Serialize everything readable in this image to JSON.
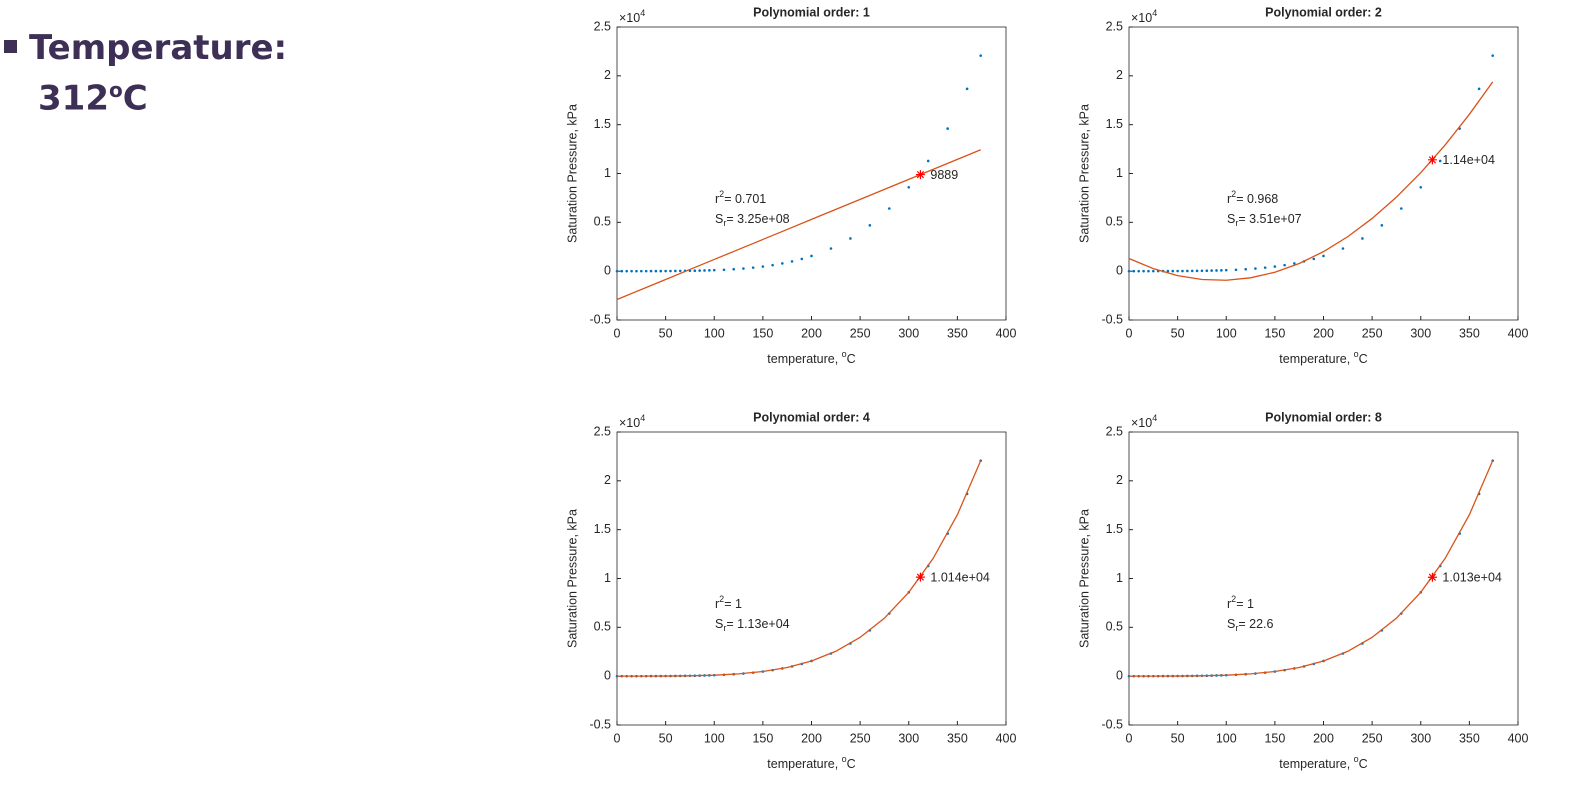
{
  "slide": {
    "heading": "Temperature:",
    "value": "312",
    "sup": "o",
    "unit": "C"
  },
  "chart_data": [
    {
      "type": "scatter",
      "title": "Polynomial order: 1",
      "xlabel": {
        "text": "temperature, ",
        "sup": "o",
        "unit": "C"
      },
      "ylabel": "Saturation Pressure, kPa",
      "y_scale": {
        "base": "×10",
        "exp": "4"
      },
      "xlim": [
        0,
        400
      ],
      "xticks": [
        0,
        50,
        100,
        150,
        200,
        250,
        300,
        350,
        400
      ],
      "ylim": [
        -5000,
        25000
      ],
      "yticks": [
        {
          "value": -5000,
          "label": "-0.5"
        },
        0,
        {
          "value": 5000,
          "label": "0.5"
        },
        {
          "value": 10000,
          "label": "1"
        },
        {
          "value": 15000,
          "label": "1.5"
        },
        {
          "value": 20000,
          "label": "2"
        },
        {
          "value": 25000,
          "label": "2.5"
        }
      ],
      "grid": false,
      "points": {
        "color": "#0072bd",
        "x": [
          0,
          5,
          10,
          15,
          20,
          25,
          30,
          35,
          40,
          45,
          50,
          55,
          60,
          65,
          70,
          75,
          80,
          85,
          90,
          95,
          100,
          110,
          120,
          130,
          140,
          150,
          160,
          170,
          180,
          190,
          200,
          220,
          240,
          260,
          280,
          300,
          320,
          340,
          360,
          374
        ],
        "values": [
          0.61,
          0.87,
          1.23,
          1.71,
          2.34,
          3.17,
          4.25,
          5.63,
          7.38,
          9.59,
          12.35,
          15.76,
          19.95,
          25.04,
          31.2,
          38.6,
          47.41,
          57.87,
          70.18,
          84.61,
          101.42,
          143.38,
          198.67,
          270.28,
          361.53,
          476.16,
          618.23,
          792.19,
          1002.8,
          1255.2,
          1554.9,
          2319.6,
          3346.9,
          4692.3,
          6416.6,
          8587.9,
          11284,
          14601,
          18666,
          22064
        ]
      },
      "fit": {
        "color": "#d95319",
        "x": [
          0,
          25,
          50,
          75,
          100,
          125,
          150,
          175,
          200,
          225,
          250,
          275,
          300,
          325,
          350,
          374
        ],
        "values": [
          -2900,
          -1875,
          -850,
          175,
          1200,
          2225,
          3250,
          4275,
          5300,
          6325,
          7350,
          8375,
          9400,
          10425,
          11450,
          12434
        ]
      },
      "marker": {
        "color": "#ff0000",
        "x": 312,
        "y": 9889,
        "label": "9889"
      },
      "r2": {
        "base": "r",
        "sup": "2",
        "text": "= 0.701"
      },
      "sr": {
        "base": "S",
        "sub": "r",
        "text": "= 3.25e+08"
      }
    },
    {
      "type": "scatter",
      "title": "Polynomial order: 2",
      "xlabel": {
        "text": "temperature, ",
        "sup": "o",
        "unit": "C"
      },
      "ylabel": "Saturation Pressure, kPa",
      "y_scale": {
        "base": "×10",
        "exp": "4"
      },
      "xlim": [
        0,
        400
      ],
      "xticks": [
        0,
        50,
        100,
        150,
        200,
        250,
        300,
        350,
        400
      ],
      "ylim": [
        -5000,
        25000
      ],
      "yticks": [
        {
          "value": -5000,
          "label": "-0.5"
        },
        0,
        {
          "value": 5000,
          "label": "0.5"
        },
        {
          "value": 10000,
          "label": "1"
        },
        {
          "value": 15000,
          "label": "1.5"
        },
        {
          "value": 20000,
          "label": "2"
        },
        {
          "value": 25000,
          "label": "2.5"
        }
      ],
      "grid": false,
      "points": {
        "color": "#0072bd",
        "x": [
          0,
          5,
          10,
          15,
          20,
          25,
          30,
          35,
          40,
          45,
          50,
          55,
          60,
          65,
          70,
          75,
          80,
          85,
          90,
          95,
          100,
          110,
          120,
          130,
          140,
          150,
          160,
          170,
          180,
          190,
          200,
          220,
          240,
          260,
          280,
          300,
          320,
          340,
          360,
          374
        ],
        "values": [
          0.61,
          0.87,
          1.23,
          1.71,
          2.34,
          3.17,
          4.25,
          5.63,
          7.38,
          9.59,
          12.35,
          15.76,
          19.95,
          25.04,
          31.2,
          38.6,
          47.41,
          57.87,
          70.18,
          84.61,
          101.42,
          143.38,
          198.67,
          270.28,
          361.53,
          476.16,
          618.23,
          792.19,
          1002.8,
          1255.2,
          1554.9,
          2319.6,
          3346.9,
          4692.3,
          6416.6,
          8587.9,
          11284,
          14601,
          18666,
          22064
        ]
      },
      "fit": {
        "color": "#d95319",
        "x": [
          0,
          25,
          50,
          75,
          100,
          125,
          150,
          175,
          200,
          225,
          250,
          275,
          300,
          325,
          350,
          374
        ],
        "values": [
          1300,
          260,
          -459,
          -854,
          -928,
          -680,
          -108,
          785,
          2000,
          3537,
          5398,
          7580,
          10084,
          12911,
          16060,
          19386
        ]
      },
      "marker": {
        "color": "#ff0000",
        "x": 312,
        "y": 11400,
        "label": "1.14e+04"
      },
      "r2": {
        "base": "r",
        "sup": "2",
        "text": "= 0.968"
      },
      "sr": {
        "base": "S",
        "sub": "r",
        "text": "= 3.51e+07"
      }
    },
    {
      "type": "scatter",
      "title": "Polynomial order: 4",
      "xlabel": {
        "text": "temperature, ",
        "sup": "o",
        "unit": "C"
      },
      "ylabel": "Saturation Pressure, kPa",
      "y_scale": {
        "base": "×10",
        "exp": "4"
      },
      "xlim": [
        0,
        400
      ],
      "xticks": [
        0,
        50,
        100,
        150,
        200,
        250,
        300,
        350,
        400
      ],
      "ylim": [
        -5000,
        25000
      ],
      "yticks": [
        {
          "value": -5000,
          "label": "-0.5"
        },
        0,
        {
          "value": 5000,
          "label": "0.5"
        },
        {
          "value": 10000,
          "label": "1"
        },
        {
          "value": 15000,
          "label": "1.5"
        },
        {
          "value": 20000,
          "label": "2"
        },
        {
          "value": 25000,
          "label": "2.5"
        }
      ],
      "grid": false,
      "points": {
        "color": "#0072bd",
        "x": [
          0,
          5,
          10,
          15,
          20,
          25,
          30,
          35,
          40,
          45,
          50,
          55,
          60,
          65,
          70,
          75,
          80,
          85,
          90,
          95,
          100,
          110,
          120,
          130,
          140,
          150,
          160,
          170,
          180,
          190,
          200,
          220,
          240,
          260,
          280,
          300,
          320,
          340,
          360,
          374
        ],
        "values": [
          0.61,
          0.87,
          1.23,
          1.71,
          2.34,
          3.17,
          4.25,
          5.63,
          7.38,
          9.59,
          12.35,
          15.76,
          19.95,
          25.04,
          31.2,
          38.6,
          47.41,
          57.87,
          70.18,
          84.61,
          101.42,
          143.38,
          198.67,
          270.28,
          361.53,
          476.16,
          618.23,
          792.19,
          1002.8,
          1255.2,
          1554.9,
          2319.6,
          3346.9,
          4692.3,
          6416.6,
          8587.9,
          11284,
          14601,
          18666,
          22064
        ]
      },
      "fit": {
        "color": "#d95319",
        "x": [
          0,
          25,
          50,
          75,
          100,
          125,
          150,
          175,
          200,
          225,
          250,
          275,
          300,
          325,
          350,
          374
        ],
        "values": [
          0.61,
          3.17,
          12.35,
          38.6,
          101.42,
          232,
          476.16,
          892,
          1554.9,
          2548,
          3973,
          5940,
          8587.9,
          12046,
          16529,
          22064
        ]
      },
      "marker": {
        "color": "#ff0000",
        "x": 312,
        "y": 10140,
        "label": "1.014e+04"
      },
      "r2": {
        "base": "r",
        "sup": "2",
        "text": "= 1"
      },
      "sr": {
        "base": "S",
        "sub": "r",
        "text": "= 1.13e+04"
      }
    },
    {
      "type": "scatter",
      "title": "Polynomial order: 8",
      "xlabel": {
        "text": "temperature, ",
        "sup": "o",
        "unit": "C"
      },
      "ylabel": "Saturation Pressure, kPa",
      "y_scale": {
        "base": "×10",
        "exp": "4"
      },
      "xlim": [
        0,
        400
      ],
      "xticks": [
        0,
        50,
        100,
        150,
        200,
        250,
        300,
        350,
        400
      ],
      "ylim": [
        -5000,
        25000
      ],
      "yticks": [
        {
          "value": -5000,
          "label": "-0.5"
        },
        0,
        {
          "value": 5000,
          "label": "0.5"
        },
        {
          "value": 10000,
          "label": "1"
        },
        {
          "value": 15000,
          "label": "1.5"
        },
        {
          "value": 20000,
          "label": "2"
        },
        {
          "value": 25000,
          "label": "2.5"
        }
      ],
      "grid": false,
      "points": {
        "color": "#0072bd",
        "x": [
          0,
          5,
          10,
          15,
          20,
          25,
          30,
          35,
          40,
          45,
          50,
          55,
          60,
          65,
          70,
          75,
          80,
          85,
          90,
          95,
          100,
          110,
          120,
          130,
          140,
          150,
          160,
          170,
          180,
          190,
          200,
          220,
          240,
          260,
          280,
          300,
          320,
          340,
          360,
          374
        ],
        "values": [
          0.61,
          0.87,
          1.23,
          1.71,
          2.34,
          3.17,
          4.25,
          5.63,
          7.38,
          9.59,
          12.35,
          15.76,
          19.95,
          25.04,
          31.2,
          38.6,
          47.41,
          57.87,
          70.18,
          84.61,
          101.42,
          143.38,
          198.67,
          270.28,
          361.53,
          476.16,
          618.23,
          792.19,
          1002.8,
          1255.2,
          1554.9,
          2319.6,
          3346.9,
          4692.3,
          6416.6,
          8587.9,
          11284,
          14601,
          18666,
          22064
        ]
      },
      "fit": {
        "color": "#d95319",
        "x": [
          0,
          25,
          50,
          75,
          100,
          125,
          150,
          175,
          200,
          225,
          250,
          275,
          300,
          325,
          350,
          374
        ],
        "values": [
          0.61,
          3.17,
          12.35,
          38.6,
          101.42,
          232,
          476.16,
          892,
          1554.9,
          2548,
          3973,
          5940,
          8587.9,
          12046,
          16529,
          22064
        ]
      },
      "marker": {
        "color": "#ff0000",
        "x": 312,
        "y": 10130,
        "label": "1.013e+04"
      },
      "r2": {
        "base": "r",
        "sup": "2",
        "text": "= 1"
      },
      "sr": {
        "base": "S",
        "sub": "r",
        "text": "= 22.6"
      }
    }
  ]
}
